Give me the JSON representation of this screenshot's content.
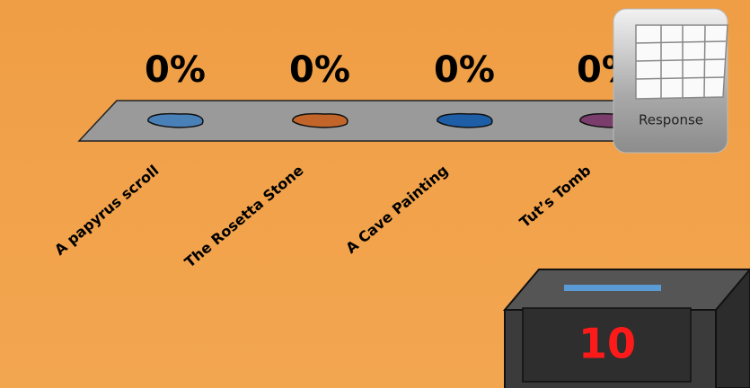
{
  "chart_data": {
    "type": "bar",
    "categories": [
      "A papyrus scroll",
      "The Rosetta Stone",
      "A Cave Painting",
      "Tut’s Tomb"
    ],
    "values": [
      0,
      0,
      0,
      0
    ],
    "value_labels": [
      "0%",
      "0%",
      "0%",
      "0%"
    ],
    "colors": [
      "#4a80b8",
      "#c2652b",
      "#1d5ea6",
      "#7b3e6c"
    ]
  },
  "response_button": {
    "label": "Response"
  },
  "countdown": {
    "value": 10
  }
}
